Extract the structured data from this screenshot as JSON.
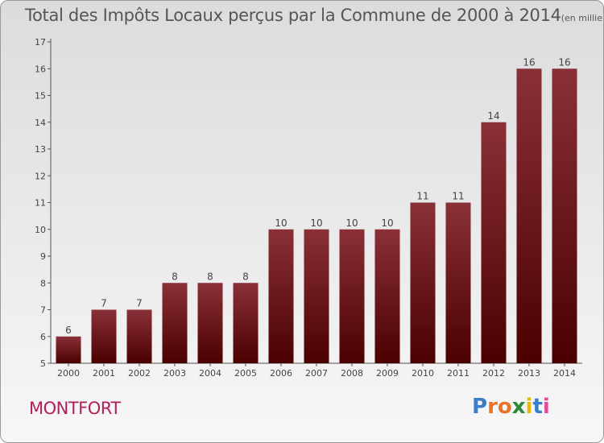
{
  "title": "Total des Impôts Locaux perçus par la Commune de 2000 à 2014",
  "subtitle": "(en milliers d'€)",
  "commune": "MONTFORT",
  "logo": {
    "text": "Proxiti",
    "colors": [
      "#3a7ec8",
      "#e8742a",
      "#e8742a",
      "#2a8a3a",
      "#e8b800",
      "#3a7ec8",
      "#e84a9a"
    ]
  },
  "colors": {
    "bar_top": "#8a3038",
    "bar_bottom": "#4a0000",
    "axis": "#555555",
    "label": "#444444",
    "commune": "#b0205a"
  },
  "chart_data": {
    "type": "bar",
    "title": "Total des Impôts Locaux perçus par la Commune de 2000 à 2014",
    "subtitle": "(en milliers d'€)",
    "categories": [
      "2000",
      "2001",
      "2002",
      "2003",
      "2004",
      "2005",
      "2006",
      "2007",
      "2008",
      "2009",
      "2010",
      "2011",
      "2012",
      "2013",
      "2014"
    ],
    "values": [
      6,
      7,
      7,
      8,
      8,
      8,
      10,
      10,
      10,
      10,
      11,
      11,
      14,
      16,
      16
    ],
    "ylim": [
      5,
      17
    ],
    "yticks": [
      5,
      6,
      7,
      8,
      9,
      10,
      11,
      12,
      13,
      14,
      15,
      16,
      17
    ],
    "grid": false,
    "legend": "none"
  }
}
